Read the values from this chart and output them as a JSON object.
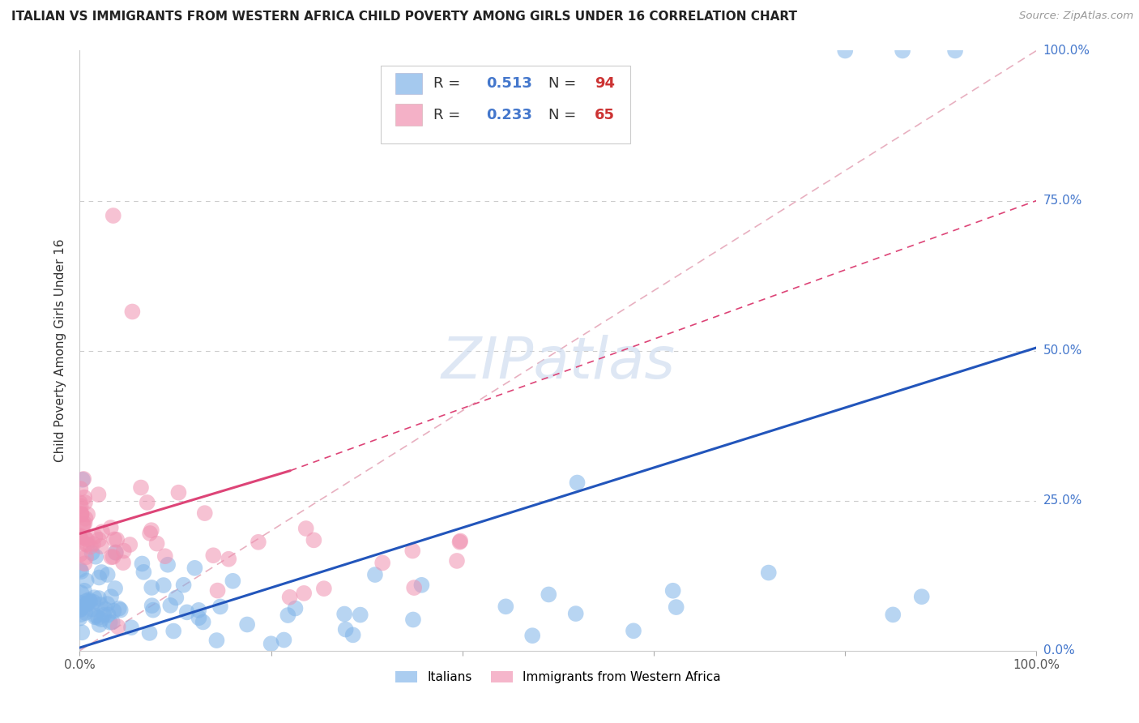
{
  "title": "ITALIAN VS IMMIGRANTS FROM WESTERN AFRICA CHILD POVERTY AMONG GIRLS UNDER 16 CORRELATION CHART",
  "source": "Source: ZipAtlas.com",
  "ylabel": "Child Poverty Among Girls Under 16",
  "watermark_text": "ZIPatlas",
  "blue_color": "#7fb3e8",
  "pink_color": "#f090b0",
  "blue_line_color": "#2255bb",
  "pink_line_color": "#dd4477",
  "diagonal_color": "#ddbbcc",
  "grid_color": "#cccccc",
  "right_label_color": "#4477cc",
  "legend_R_color": "#4477cc",
  "legend_N_color": "#cc3333",
  "legend_text_color": "#333333",
  "blue_trend": [
    0.0,
    0.005,
    1.0,
    0.505
  ],
  "pink_trend_solid": [
    0.0,
    0.195,
    0.22,
    0.3
  ],
  "pink_trend_dashed": [
    0.22,
    0.3,
    1.0,
    0.75
  ],
  "ytick_positions": [
    0.0,
    0.25,
    0.5,
    0.75,
    1.0
  ],
  "ytick_labels": [
    "0.0%",
    "25.0%",
    "50.0%",
    "75.0%",
    "100.0%"
  ],
  "xtick_positions": [
    0.0,
    0.2,
    0.4,
    0.6,
    0.8,
    1.0
  ],
  "xtick_labels": [
    "0.0%",
    "",
    "",
    "",
    "",
    "100.0%"
  ]
}
